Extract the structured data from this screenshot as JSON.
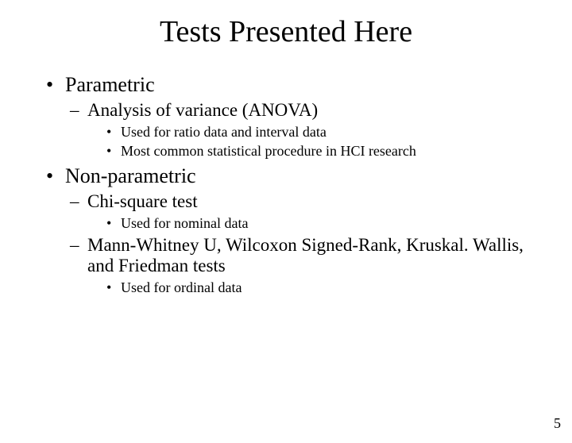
{
  "title": "Tests Presented Here",
  "b1": "Parametric",
  "b1s1": "Analysis of variance (ANOVA)",
  "b1s1d1": "Used for ratio data and interval data",
  "b1s1d2": "Most common statistical procedure in HCI research",
  "b2": "Non-parametric",
  "b2s1": "Chi-square test",
  "b2s1d1": "Used for nominal data",
  "b2s2": "Mann-Whitney U, Wilcoxon Signed-Rank, Kruskal. Wallis, and Friedman tests",
  "b2s2d1": "Used for ordinal data",
  "pagenum": "5"
}
